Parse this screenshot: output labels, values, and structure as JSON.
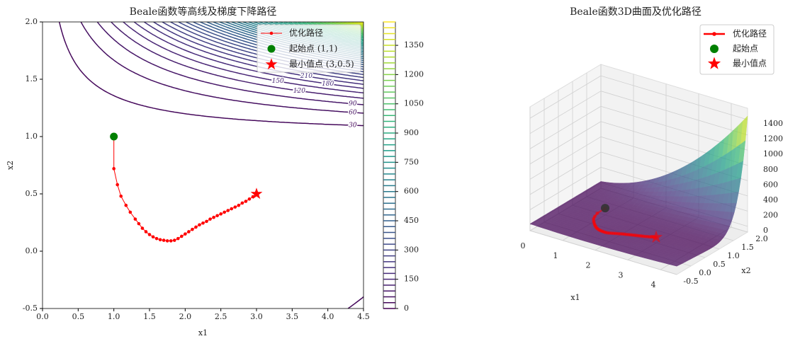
{
  "chart_data": [
    {
      "type": "contour",
      "title": "Beale函数等高线及梯度下降路径",
      "xlabel": "x1",
      "ylabel": "x2",
      "xlim": [
        0,
        4.5
      ],
      "ylim": [
        -0.5,
        2
      ],
      "xticks": [
        {
          "value": 0,
          "label": "0.0"
        },
        0.5,
        {
          "value": 1,
          "label": "1.0"
        },
        1.5,
        {
          "value": 2,
          "label": "2.0"
        },
        2.5,
        {
          "value": 3,
          "label": "3.0"
        },
        3.5,
        {
          "value": 4,
          "label": "4.0"
        },
        4.5
      ],
      "yticks": [
        -0.5,
        {
          "value": 0,
          "label": "0.0"
        },
        0.5,
        {
          "value": 1,
          "label": "1.0"
        },
        1.5,
        {
          "value": 2,
          "label": "2.0"
        }
      ],
      "levels": [
        0,
        30,
        60,
        90,
        120,
        150,
        180,
        210,
        240,
        270,
        300,
        330,
        360,
        390,
        420,
        450,
        480,
        510,
        540,
        570,
        600,
        630,
        660,
        690,
        720,
        750,
        780,
        810,
        840,
        870,
        900,
        930,
        960,
        990,
        1020,
        1050,
        1080,
        1110,
        1140,
        1170,
        1200,
        1230,
        1260,
        1290,
        1320,
        1350,
        1380,
        1410,
        1440,
        1470
      ],
      "colorbar_ticks": [
        0,
        150,
        300,
        450,
        600,
        750,
        900,
        1050,
        1200,
        1350
      ],
      "colormap": "viridis",
      "legend": "upper right",
      "series": [
        {
          "name": "优化路径",
          "color": "#ff0000",
          "marker": "o",
          "x": [
            1,
            1,
            1.05,
            1.1,
            1.17,
            1.23,
            1.3,
            1.35,
            1.4,
            1.45,
            1.5,
            1.55,
            1.6,
            1.65,
            1.7,
            1.75,
            1.8,
            1.85,
            1.9,
            1.95,
            2.0,
            2.05,
            2.1,
            2.15,
            2.2,
            2.25,
            2.3,
            2.35,
            2.4,
            2.45,
            2.5,
            2.55,
            2.6,
            2.65,
            2.7,
            2.75,
            2.8,
            2.85,
            2.9,
            2.95,
            3.0
          ],
          "y": [
            1,
            0.72,
            0.58,
            0.48,
            0.4,
            0.34,
            0.28,
            0.24,
            0.2,
            0.17,
            0.145,
            0.125,
            0.11,
            0.1,
            0.095,
            0.09,
            0.09,
            0.095,
            0.11,
            0.13,
            0.15,
            0.17,
            0.19,
            0.21,
            0.23,
            0.245,
            0.26,
            0.28,
            0.295,
            0.31,
            0.325,
            0.34,
            0.355,
            0.37,
            0.385,
            0.4,
            0.42,
            0.435,
            0.455,
            0.475,
            0.495
          ]
        },
        {
          "name": "起始点 (1,1)",
          "color": "#008000",
          "marker": "o",
          "x": [
            1
          ],
          "y": [
            1
          ]
        },
        {
          "name": "最小值点 (3,0.5)",
          "color": "#ff0000",
          "marker": "*",
          "x": [
            3
          ],
          "y": [
            0.5
          ]
        }
      ]
    },
    {
      "type": "surface3d",
      "title": "Beale函数3D曲面及优化路径",
      "xlabel": "x1",
      "ylabel": "x2",
      "xlim": [
        0,
        4.5
      ],
      "ylim": [
        -0.5,
        2
      ],
      "zlim": [
        -75,
        1550
      ],
      "xticks": [
        0,
        1,
        2,
        3,
        4
      ],
      "yticks": [
        -0.5,
        {
          "value": 0,
          "label": "0.0"
        },
        0.5,
        {
          "value": 1,
          "label": "1.0"
        },
        1.5,
        {
          "value": 2,
          "label": "2.0"
        }
      ],
      "zticks": [
        0,
        200,
        400,
        600,
        800,
        1000,
        1200,
        1400
      ],
      "colormap": "viridis",
      "legend": "upper right",
      "series": [
        {
          "name": "优化路径",
          "color": "#ff0000",
          "marker": "o",
          "x": [
            1,
            1,
            1.05,
            1.1,
            1.17,
            1.23,
            1.3,
            1.35,
            1.4,
            1.45,
            1.5,
            1.55,
            1.6,
            1.65,
            1.7,
            1.75,
            1.8,
            1.85,
            1.9,
            1.95,
            2.0,
            2.05,
            2.1,
            2.15,
            2.2,
            2.25,
            2.3,
            2.35,
            2.4,
            2.45,
            2.5,
            2.55,
            2.6,
            2.65,
            2.7,
            2.75,
            2.8,
            2.85,
            2.9,
            2.95,
            3.0
          ],
          "y": [
            1,
            0.72,
            0.58,
            0.48,
            0.4,
            0.34,
            0.28,
            0.24,
            0.2,
            0.17,
            0.145,
            0.125,
            0.11,
            0.1,
            0.095,
            0.09,
            0.09,
            0.095,
            0.11,
            0.13,
            0.15,
            0.17,
            0.19,
            0.21,
            0.23,
            0.245,
            0.26,
            0.28,
            0.295,
            0.31,
            0.325,
            0.34,
            0.355,
            0.37,
            0.385,
            0.4,
            0.42,
            0.435,
            0.455,
            0.475,
            0.495
          ]
        },
        {
          "name": "起始点",
          "color": "#008000",
          "marker": "o",
          "x": [
            1
          ],
          "y": [
            1
          ]
        },
        {
          "name": "最小值点",
          "color": "#ff0000",
          "marker": "*",
          "x": [
            3
          ],
          "y": [
            0.5
          ]
        }
      ]
    }
  ]
}
